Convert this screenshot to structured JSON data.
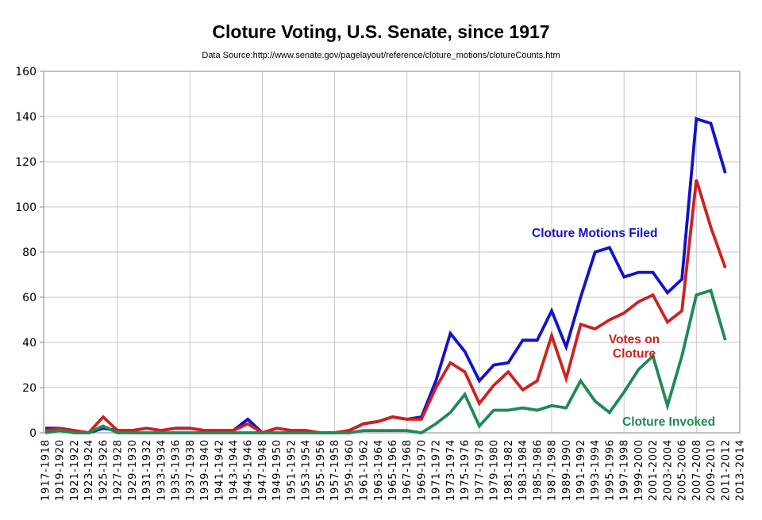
{
  "title": "Cloture Voting, U.S. Senate, since 1917",
  "subtitle": "Data Source:http://www.senate.gov/pagelayout/reference/cloture_motions/clotureCounts.htm",
  "colors": {
    "motions_filed": "#1212c8",
    "votes_on_cloture": "#cc2222",
    "cloture_invoked": "#1f8a55",
    "gridline": "#c6c6c6",
    "plot_border": "#9a9a9a"
  },
  "chart_data": {
    "type": "line",
    "title": "Cloture Voting, U.S. Senate, since 1917",
    "subtitle": "Data Source:http://www.senate.gov/pagelayout/reference/cloture_motions/clotureCounts.htm",
    "xlabel": "",
    "ylabel": "",
    "ylim": [
      0,
      160
    ],
    "yticks": [
      0,
      20,
      40,
      60,
      80,
      100,
      120,
      140,
      160
    ],
    "grid": true,
    "legend_position": "inline-colored-annotations",
    "categories": [
      "1917-1918",
      "1919-1920",
      "1921-1922",
      "1923-1924",
      "1925-1926",
      "1927-1928",
      "1929-1930",
      "1931-1932",
      "1933-1934",
      "1935-1936",
      "1937-1938",
      "1939-1940",
      "1941-1942",
      "1943-1944",
      "1945-1946",
      "1947-1948",
      "1949-1950",
      "1951-1952",
      "1953-1954",
      "1955-1956",
      "1957-1958",
      "1959-1960",
      "1961-1962",
      "1963-1964",
      "1965-1966",
      "1967-1968",
      "1969-1970",
      "1971-1972",
      "1973-1974",
      "1975-1976",
      "1977-1978",
      "1979-1980",
      "1981-1982",
      "1983-1984",
      "1985-1986",
      "1987-1988",
      "1989-1990",
      "1991-1992",
      "1993-1994",
      "1995-1996",
      "1997-1998",
      "1999-2000",
      "2001-2002",
      "2003-2004",
      "2005-2006",
      "2007-2008",
      "2009-2010",
      "2011-2012",
      "2013-2014"
    ],
    "series": [
      {
        "name": "Cloture Motions Filed",
        "label_lines": [
          "Cloture Motions Filed"
        ],
        "color": "#1212c8",
        "values": [
          2,
          2,
          1,
          0,
          2,
          1,
          1,
          2,
          1,
          2,
          2,
          1,
          1,
          1,
          6,
          0,
          2,
          1,
          1,
          0,
          0,
          1,
          4,
          5,
          7,
          6,
          7,
          23,
          44,
          36,
          23,
          30,
          31,
          41,
          41,
          54,
          38,
          60,
          80,
          82,
          69,
          71,
          71,
          62,
          68,
          139,
          137,
          115,
          null
        ]
      },
      {
        "name": "Votes on Cloture",
        "label_lines": [
          "Votes on",
          "Cloture"
        ],
        "color": "#cc2222",
        "values": [
          1,
          2,
          1,
          0,
          7,
          1,
          1,
          2,
          1,
          2,
          2,
          1,
          1,
          1,
          4,
          0,
          2,
          1,
          1,
          0,
          0,
          1,
          4,
          5,
          7,
          6,
          6,
          20,
          31,
          27,
          13,
          21,
          27,
          19,
          23,
          43,
          24,
          48,
          46,
          50,
          53,
          58,
          61,
          49,
          54,
          112,
          91,
          73,
          null
        ]
      },
      {
        "name": "Cloture Invoked",
        "label_lines": [
          "Cloture Invoked"
        ],
        "color": "#1f8a55",
        "values": [
          0,
          1,
          0,
          0,
          3,
          0,
          0,
          0,
          0,
          0,
          0,
          0,
          0,
          0,
          0,
          0,
          0,
          0,
          0,
          0,
          0,
          0,
          1,
          1,
          1,
          1,
          0,
          4,
          9,
          17,
          3,
          10,
          10,
          11,
          10,
          12,
          11,
          23,
          14,
          9,
          18,
          28,
          34,
          12,
          34,
          61,
          63,
          41,
          null
        ]
      }
    ]
  }
}
